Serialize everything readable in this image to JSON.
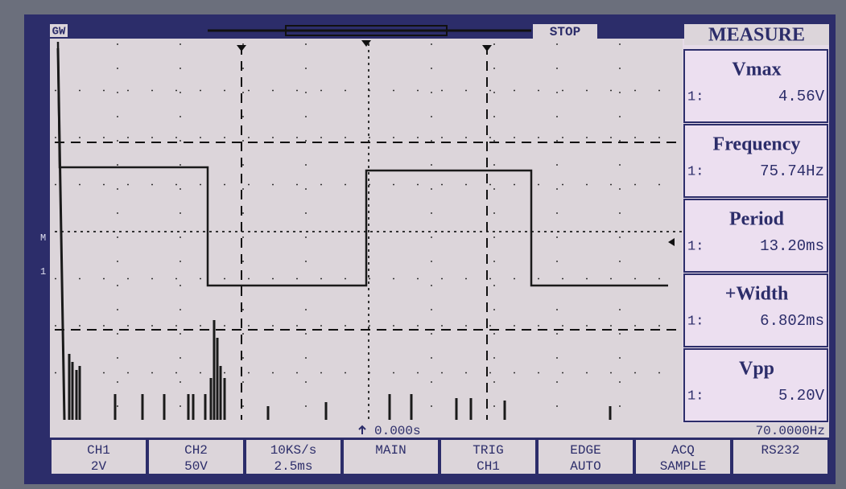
{
  "header": {
    "brand": "GW",
    "status": "STOP"
  },
  "measure": {
    "title": "MEASURE",
    "items": [
      {
        "name": "Vmax",
        "channel": "1:",
        "value": "4.56V"
      },
      {
        "name": "Frequency",
        "channel": "1:",
        "value": "75.74Hz"
      },
      {
        "name": "Period",
        "channel": "1:",
        "value": "13.20ms"
      },
      {
        "name": "+Width",
        "channel": "1:",
        "value": "6.802ms"
      },
      {
        "name": "Vpp",
        "channel": "1:",
        "value": "5.20V"
      }
    ]
  },
  "screen": {
    "markers": [
      "M",
      "1"
    ],
    "trigger_time": "0.000s",
    "trigger_frequency": "70.0000Hz"
  },
  "softkeys": [
    {
      "line1": "CH1",
      "line2": "2V"
    },
    {
      "line1": "CH2",
      "line2": "50V"
    },
    {
      "line1": "10KS/s",
      "line2": "2.5ms"
    },
    {
      "line1": "MAIN",
      "line2": ""
    },
    {
      "line1": "TRIG",
      "line2": "CH1"
    },
    {
      "line1": "EDGE",
      "line2": "AUTO"
    },
    {
      "line1": "ACQ",
      "line2": "SAMPLE"
    },
    {
      "line1": "RS232",
      "line2": ""
    }
  ]
}
